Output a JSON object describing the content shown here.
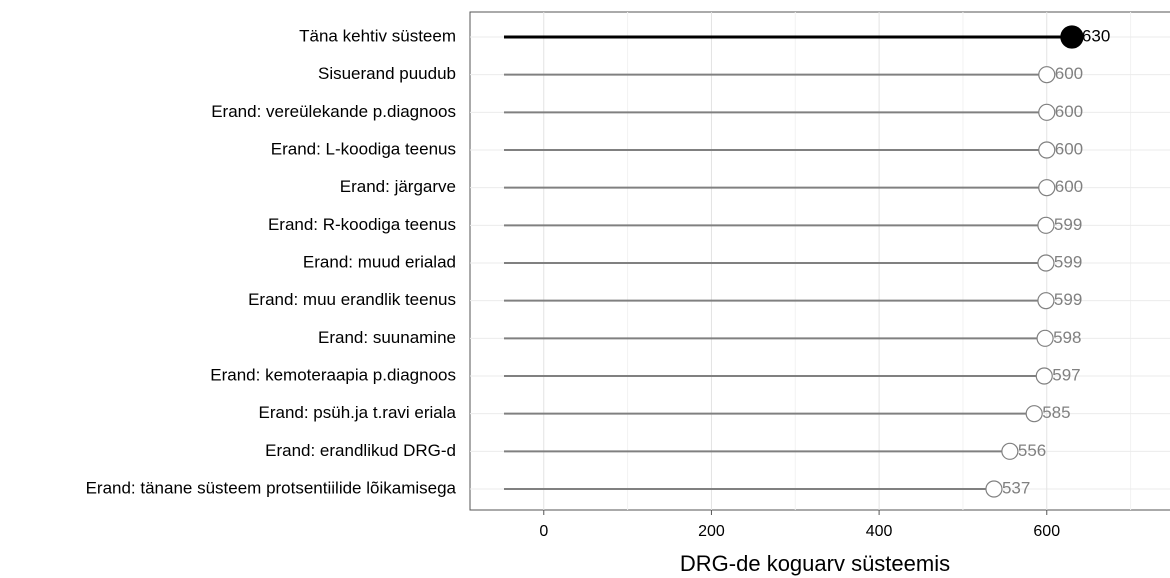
{
  "chart_data": {
    "type": "lollipop",
    "categories": [
      "Täna kehtiv süsteem",
      "Sisuerand puudub",
      "Erand: vereülekande p.diagnoos",
      "Erand: L-koodiga teenus",
      "Erand: järgarve",
      "Erand: R-koodiga teenus",
      "Erand: muud erialad",
      "Erand: muu erandlik teenus",
      "Erand: suunamine",
      "Erand: kemoteraapia p.diagnoos",
      "Erand: psüh.ja t.ravi eriala",
      "Erand: erandlikud DRG-d",
      "Erand: tänane süsteem protsentiilide lõikamisega"
    ],
    "values": [
      630,
      600,
      600,
      600,
      600,
      599,
      599,
      599,
      598,
      597,
      585,
      556,
      537
    ],
    "color": "#808080",
    "highlight": 0,
    "highlight_color": "#000000",
    "xlabel": "DRG-de koguarv süsteemis",
    "xlim": [
      -88,
      747
    ],
    "xticks": [
      0,
      200,
      400,
      600
    ],
    "minor_xticks": [
      100,
      300,
      500,
      700
    ],
    "grid": true
  }
}
